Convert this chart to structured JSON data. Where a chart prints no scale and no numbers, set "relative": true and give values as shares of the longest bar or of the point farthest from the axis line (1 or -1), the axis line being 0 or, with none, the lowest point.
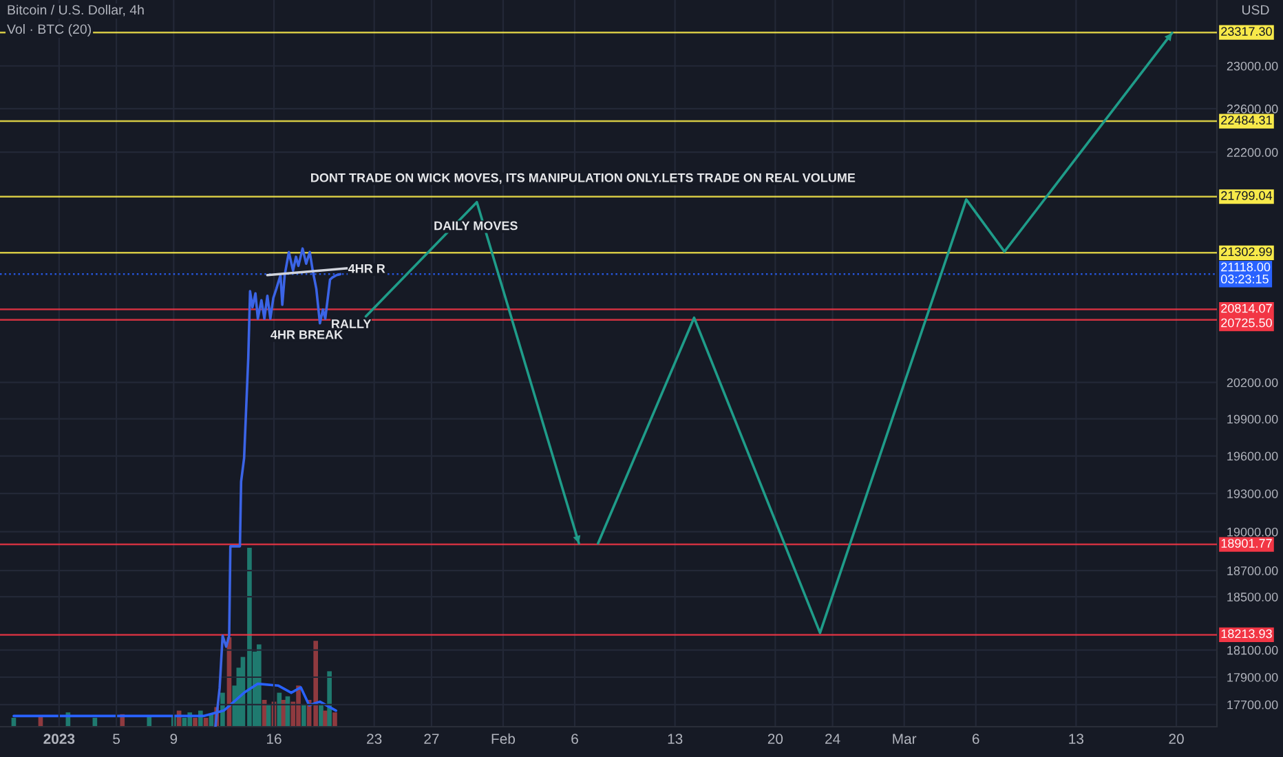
{
  "chart_data": [
    {
      "type": "line",
      "title": "Bitcoin / U.S. Dollar, 4h",
      "ylabel": "USD",
      "log": true,
      "grid": true,
      "ylim": [
        17540,
        23630
      ],
      "yticks": [
        {
          "value": 17700,
          "label": "17700.00"
        },
        {
          "value": 17900,
          "label": "17900.00"
        },
        {
          "value": 18100,
          "label": "18100.00"
        },
        {
          "value": 18500,
          "label": "18500.00"
        },
        {
          "value": 18700,
          "label": "18700.00"
        },
        {
          "value": 19000,
          "label": "19000.00"
        },
        {
          "value": 19300,
          "label": "19300.00"
        },
        {
          "value": 19600,
          "label": "19600.00"
        },
        {
          "value": 19900,
          "label": "19900.00"
        },
        {
          "value": 20200,
          "label": "20200.00"
        },
        {
          "value": 22200,
          "label": "22200.00"
        },
        {
          "value": 22600,
          "label": "22600.00"
        },
        {
          "value": 23000,
          "label": "23000.00"
        }
      ],
      "xlim": [
        "2022-12-27T21:00",
        "2023-03-22T20:00"
      ],
      "xticks": [
        {
          "value": "2023-01-01",
          "label": "2023"
        },
        {
          "value": "2023-01-05",
          "label": "5"
        },
        {
          "value": "2023-01-09",
          "label": "9"
        },
        {
          "value": "2023-01-16",
          "label": "16"
        },
        {
          "value": "2023-01-23",
          "label": "23"
        },
        {
          "value": "2023-01-27",
          "label": "27"
        },
        {
          "value": "2023-02-01",
          "label": "Feb"
        },
        {
          "value": "2023-02-06",
          "label": "6"
        },
        {
          "value": "2023-02-13",
          "label": "13"
        },
        {
          "value": "2023-02-20",
          "label": "20"
        },
        {
          "value": "2023-02-24",
          "label": "24"
        },
        {
          "value": "2023-03-01",
          "label": "Mar"
        },
        {
          "value": "2023-03-06",
          "label": "6"
        },
        {
          "value": "2023-03-13",
          "label": "13"
        },
        {
          "value": "2023-03-20",
          "label": "20"
        }
      ],
      "annotations": [
        "DONT TRADE ON WICK MOVES, ITS MANIPULATION ONLY.LETS TRADE ON REAL VOLUME",
        "DAILY MOVES",
        "4HR R",
        "RALLY",
        "4HR BREAK"
      ],
      "ref_lines": [
        {
          "axis": "y",
          "value": 23317.3,
          "label": "23317.30",
          "color": "#f7e94a"
        },
        {
          "axis": "y",
          "value": 22484.31,
          "label": "22484.31",
          "color": "#f7e94a"
        },
        {
          "axis": "y",
          "value": 21799.04,
          "label": "21799.04",
          "color": "#f7e94a"
        },
        {
          "axis": "y",
          "value": 21302.99,
          "label": "21302.99",
          "color": "#f7e94a"
        },
        {
          "axis": "y",
          "value": 21118.0,
          "label": "21118.00\n03:23:15",
          "color": "#2962ff",
          "line_style": "dotted"
        },
        {
          "axis": "y",
          "value": 20814.07,
          "label": "20814.07",
          "color": "#f23645"
        },
        {
          "axis": "y",
          "value": 20725.5,
          "label": "20725.50",
          "color": "#f23645"
        },
        {
          "axis": "y",
          "value": 18901.77,
          "label": "18901.77",
          "color": "#f23645"
        },
        {
          "axis": "y",
          "value": 18213.93,
          "label": "18213.93",
          "color": "#f23645"
        }
      ],
      "series": [
        {
          "color": "#3b64e6",
          "x": [
            "2023-01-11T22:00",
            "2023-01-12T05:00",
            "2023-01-12T10:00",
            "2023-01-12T16:00",
            "2023-01-12T21:00",
            "2023-01-12T23:00",
            "2023-01-13T15:00",
            "2023-01-13T17:00",
            "2023-01-13T22:00",
            "2023-01-14T05:00",
            "2023-01-14T08:00",
            "2023-01-14T12:00",
            "2023-01-14T17:00",
            "2023-01-14T21:00",
            "2023-01-15T03:00",
            "2023-01-15T08:00",
            "2023-01-15T13:00",
            "2023-01-15T18:00",
            "2023-01-15T23:00",
            "2023-01-16T04:00",
            "2023-01-16T11:00",
            "2023-01-16T14:00",
            "2023-01-16T18:00",
            "2023-01-17T01:00",
            "2023-01-17T08:00",
            "2023-01-17T13:00",
            "2023-01-17T17:00",
            "2023-01-18T00:00",
            "2023-01-18T06:00",
            "2023-01-18T12:00",
            "2023-01-18T17:00",
            "2023-01-18T23:00",
            "2023-01-19T05:00",
            "2023-01-19T10:00",
            "2023-01-19T14:00",
            "2023-01-19T22:00",
            "2023-01-20T02:00",
            "2023-01-20T09:00",
            "2023-01-20T15:00"
          ],
          "values": [
            17541,
            17820,
            18207,
            18125,
            18207,
            18887,
            18887,
            19395,
            19582,
            20406,
            20970,
            20833,
            20951,
            20735,
            20892,
            20735,
            20931,
            20735,
            20912,
            20990,
            21109,
            20853,
            21109,
            21309,
            21148,
            21268,
            21189,
            21340,
            21208,
            21309,
            21148,
            20990,
            20696,
            20813,
            20735,
            21070,
            21089,
            21109,
            21117
          ]
        },
        {
          "color": "#d1d4dc",
          "x": [
            "2023-01-15T13:00",
            "2023-01-21T04:00"
          ],
          "values": [
            21109,
            21169
          ]
        },
        {
          "color": "#1f9c89",
          "x": [
            "2023-01-22T10:00",
            "2023-01-30T04:00",
            "2023-02-06T07:00"
          ],
          "values": [
            20755,
            21750,
            18909
          ]
        },
        {
          "color": "#1f9c89",
          "x": [
            "2023-02-07T15:00",
            "2023-02-14T08:00",
            "2023-02-23T03:00",
            "2023-03-05T08:00",
            "2023-03-08T00:00",
            "2023-03-19T17:00"
          ],
          "values": [
            18909,
            20743,
            18228,
            21774,
            21313,
            23314
          ]
        }
      ]
    },
    {
      "type": "bar",
      "title": "Vol · BTC (20)",
      "relative": true,
      "tick_labels": false,
      "xlim": [
        "2022-12-27T21:00",
        "2023-03-22T20:00"
      ],
      "series": [
        {
          "x": [
            "2022-12-28T20:00",
            "2022-12-30T17:00",
            "2023-01-01T15:00",
            "2023-01-03T12:00",
            "2023-01-05T10:00",
            "2023-01-07T07:00",
            "2023-01-09T00:00",
            "2023-01-09T09:00",
            "2023-01-09T18:00",
            "2023-01-10T03:00",
            "2023-01-10T12:00",
            "2023-01-10T21:00",
            "2023-01-11T06:00",
            "2023-01-11T15:00",
            "2023-01-12T00:00",
            "2023-01-12T10:00",
            "2023-01-12T21:00",
            "2023-01-13T06:00",
            "2023-01-13T13:00",
            "2023-01-13T20:00",
            "2023-01-14T07:00",
            "2023-01-14T16:00",
            "2023-01-14T23:00",
            "2023-01-15T08:00",
            "2023-01-15T15:00",
            "2023-01-16T00:00",
            "2023-01-16T09:00",
            "2023-01-16T16:00",
            "2023-01-16T23:00",
            "2023-01-17T08:00",
            "2023-01-17T17:00",
            "2023-01-18T02:00",
            "2023-01-18T11:00",
            "2023-01-18T22:00",
            "2023-01-19T07:00",
            "2023-01-19T14:00",
            "2023-01-19T21:00",
            "2023-01-20T06:00"
          ],
          "values": [
            0.05,
            0.06,
            0.08,
            0.05,
            0.07,
            0.06,
            0.06,
            0.09,
            0.05,
            0.08,
            0.05,
            0.09,
            0.05,
            0.07,
            0.11,
            0.19,
            0.5,
            0.23,
            0.33,
            0.39,
            1,
            0.42,
            0.46,
            0.15,
            0.12,
            0.14,
            0.19,
            0.15,
            0.17,
            0.14,
            0.23,
            0.12,
            0.15,
            0.48,
            0.12,
            0.09,
            0.31,
            0.08
          ],
          "colors": [
            "#1f7a6f",
            "#8f3a3f",
            "#1f7a6f",
            "#1f7a6f",
            "#8f3a3f",
            "#1f7a6f",
            "#1f7a6f",
            "#8f3a3f",
            "#1f7a6f",
            "#1f7a6f",
            "#8f3a3f",
            "#1f7a6f",
            "#8f3a3f",
            "#1f7a6f",
            "#8f3a3f",
            "#1f7a6f",
            "#8f3a3f",
            "#1f7a6f",
            "#1f7a6f",
            "#1f7a6f",
            "#1f7a6f",
            "#1f7a6f",
            "#1f7a6f",
            "#8f3a3f",
            "#1f7a6f",
            "#8f3a3f",
            "#1f7a6f",
            "#8f3a3f",
            "#1f7a6f",
            "#8f3a3f",
            "#8f3a3f",
            "#1f7a6f",
            "#8f3a3f",
            "#8f3a3f",
            "#1f7a6f",
            "#8f3a3f",
            "#1f7a6f",
            "#8f3a3f"
          ]
        },
        {
          "type": "line",
          "color": "#2962ff",
          "x": [
            "2022-12-28T20:00",
            "2023-01-06T08:00",
            "2023-01-11T02:00",
            "2023-01-12T12:00",
            "2023-01-13T22:00",
            "2023-01-14T21:00",
            "2023-01-16T07:00",
            "2023-01-17T05:00",
            "2023-01-17T21:00",
            "2023-01-18T11:00",
            "2023-01-19T05:00",
            "2023-01-20T08:00"
          ],
          "values": [
            0.06,
            0.06,
            0.06,
            0.09,
            0.19,
            0.24,
            0.23,
            0.19,
            0.22,
            0.12,
            0.14,
            0.09
          ]
        }
      ]
    }
  ]
}
